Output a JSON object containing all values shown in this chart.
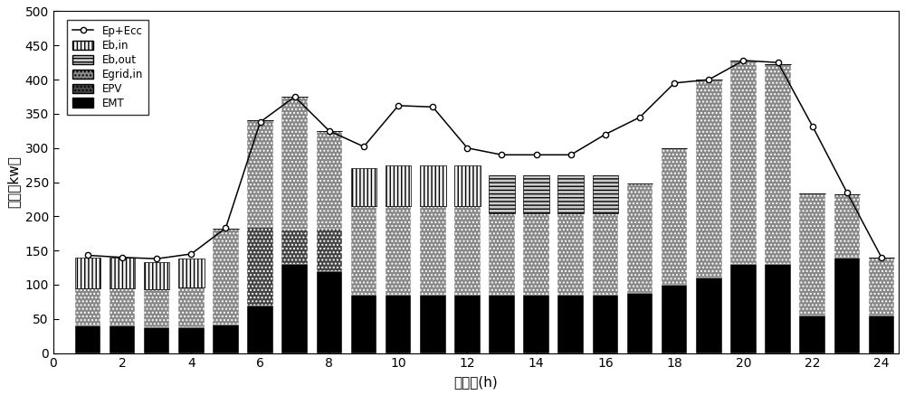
{
  "hours": [
    1,
    2,
    3,
    4,
    5,
    6,
    7,
    8,
    9,
    10,
    11,
    12,
    13,
    14,
    15,
    16,
    17,
    18,
    19,
    20,
    21,
    22,
    23,
    24
  ],
  "EMT": [
    40,
    40,
    38,
    38,
    42,
    70,
    130,
    120,
    85,
    85,
    85,
    85,
    85,
    85,
    85,
    85,
    88,
    100,
    110,
    130,
    130,
    55,
    140,
    55
  ],
  "EPV": [
    0,
    0,
    0,
    0,
    0,
    115,
    50,
    62,
    0,
    0,
    0,
    0,
    0,
    0,
    0,
    0,
    0,
    0,
    0,
    0,
    0,
    0,
    0,
    0
  ],
  "Egrid_in": [
    55,
    55,
    55,
    58,
    140,
    155,
    195,
    143,
    130,
    130,
    130,
    130,
    120,
    120,
    120,
    120,
    160,
    200,
    290,
    298,
    293,
    178,
    92,
    85
  ],
  "Eb_out": [
    0,
    0,
    0,
    0,
    0,
    0,
    0,
    0,
    0,
    0,
    0,
    0,
    55,
    55,
    55,
    55,
    0,
    0,
    0,
    0,
    0,
    0,
    0,
    0
  ],
  "Eb_in": [
    45,
    45,
    40,
    42,
    0,
    0,
    0,
    0,
    55,
    60,
    60,
    60,
    0,
    0,
    0,
    0,
    0,
    0,
    0,
    0,
    0,
    0,
    0,
    0
  ],
  "line_values": [
    143,
    140,
    138,
    145,
    183,
    338,
    375,
    325,
    302,
    362,
    360,
    300,
    290,
    290,
    290,
    320,
    345,
    395,
    400,
    428,
    425,
    332,
    235,
    140
  ],
  "ylim": [
    0,
    500
  ],
  "yticks": [
    0,
    50,
    100,
    150,
    200,
    250,
    300,
    350,
    400,
    450,
    500
  ],
  "xticks": [
    0,
    2,
    4,
    6,
    8,
    10,
    12,
    14,
    16,
    18,
    20,
    22,
    24
  ],
  "xlabel": "时　间(h)",
  "ylabel": "功率（kw）",
  "bar_width": 0.75,
  "background_color": "#ffffff"
}
